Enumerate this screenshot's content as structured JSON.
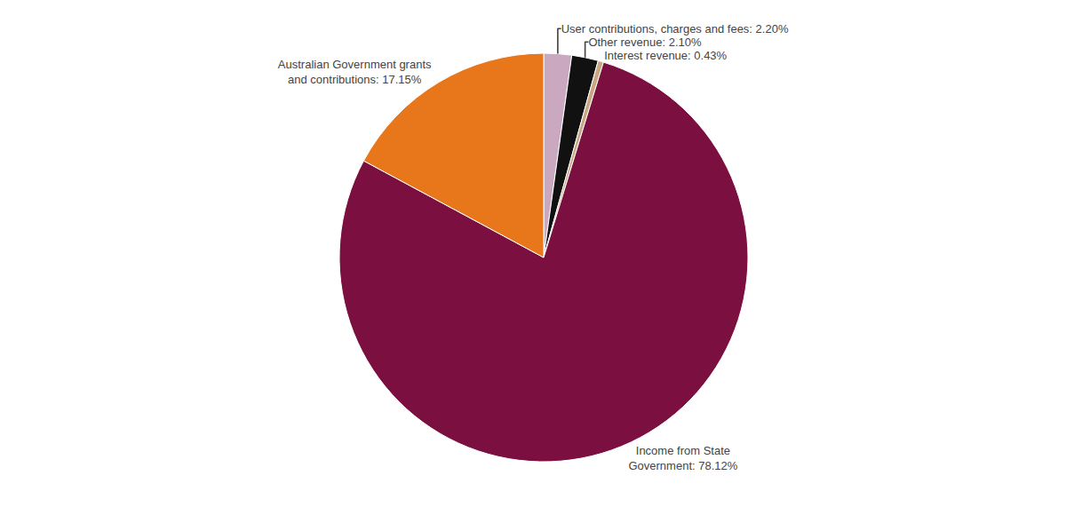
{
  "chart_data": {
    "type": "pie",
    "values": [
      2.2,
      2.1,
      0.43,
      78.12,
      17.15
    ],
    "value_labels": [
      "User contributions, charges and fees: 2.20%",
      "Other revenue: 2.10%",
      "Interest revenue: 0.43%",
      "Income from State\nGovernment: 78.12%",
      "Australian Government grants\nand contributions: 17.15%"
    ],
    "colors": [
      "#C9A8C0",
      "#111111",
      "#C8A882",
      "#7B1040",
      "#E8761A"
    ],
    "data_labels": true
  }
}
